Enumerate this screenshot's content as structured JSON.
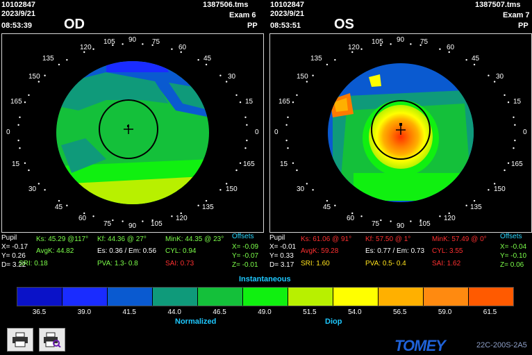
{
  "od": {
    "id": "10102847",
    "file": "1387506.tms",
    "date": "2023/9/21",
    "exam": "Exam 6",
    "time": "08:53:39",
    "mode": "PP",
    "eye": "OD",
    "pupil_label": "Pupil",
    "pupil_x": "X= -0.17",
    "pupil_y": "Y= 0.26",
    "pupil_d": "D= 3.22",
    "ks": "Ks: 45.29 @117°",
    "kf": "Kf: 44.36 @ 27°",
    "mink": "MinK: 44.35 @ 23°",
    "avgk": "AvgK: 44.82",
    "es_em": "Es: 0.36 / Em: 0.56",
    "cyl": "CYL: 0.94",
    "sri": "SRI: 0.18",
    "pva": "PVA: 1.3- 0.8",
    "sai": "SAI: 0.73",
    "offsets_label": "Offsets",
    "off_x": "X= -0.09",
    "off_y": "Y= -0.07",
    "off_z": "Z= -0.01"
  },
  "os": {
    "id": "10102847",
    "file": "1387507.tms",
    "date": "2023/9/21",
    "exam": "Exam 7",
    "time": "08:53:51",
    "mode": "PP",
    "eye": "OS",
    "pupil_label": "Pupil",
    "pupil_x": "X= -0.01",
    "pupil_y": "Y= 0.33",
    "pupil_d": "D= 3.17",
    "ks": "Ks: 61.06 @ 91°",
    "kf": "Kf: 57.50 @ 1°",
    "mink": "MinK: 57.49 @ 0°",
    "avgk": "AvgK: 59.28",
    "es_em": "Es: 0.77 / Em: 0.73",
    "cyl": "CYL: 3.55",
    "sri": "SRI: 1.60",
    "pva": "PVA: 0.5- 0.4",
    "sai": "SAI: 1.62",
    "offsets_label": "Offsets",
    "off_x": "X= -0.04",
    "off_y": "Y= -0.10",
    "off_z": "Z= 0.06"
  },
  "axis_labels": {
    "top": [
      "120",
      "105",
      "90",
      "75",
      "60"
    ],
    "upper": [
      "135",
      "45"
    ],
    "mid_upper": [
      "150",
      "30"
    ],
    "mid": [
      "165",
      "15"
    ],
    "zero": [
      "0",
      "0"
    ],
    "mid_lower": [
      "15",
      "165"
    ],
    "lower": [
      "30",
      "150"
    ],
    "low": [
      "45",
      "135"
    ],
    "bottom": [
      "60",
      "75",
      "90",
      "105",
      "120"
    ]
  },
  "legend": {
    "title": "Instantaneous",
    "normalized": "Normalized",
    "diop": "Diop",
    "values": [
      "36.5",
      "39.0",
      "41.5",
      "44.0",
      "46.5",
      "49.0",
      "51.5",
      "54.0",
      "56.5",
      "59.0",
      "61.5"
    ],
    "colors": [
      "#0a12c8",
      "#1a2cff",
      "#0a5ad0",
      "#0f9a7a",
      "#14c03a",
      "#10f010",
      "#b8f000",
      "#ffff00",
      "#ffb000",
      "#ff8a10",
      "#ff5a00"
    ]
  },
  "brand": {
    "logo": "TOMEY",
    "code": "22C-200S-2A5"
  },
  "buttons": {
    "print": "print-icon",
    "preview": "print-preview-icon"
  }
}
